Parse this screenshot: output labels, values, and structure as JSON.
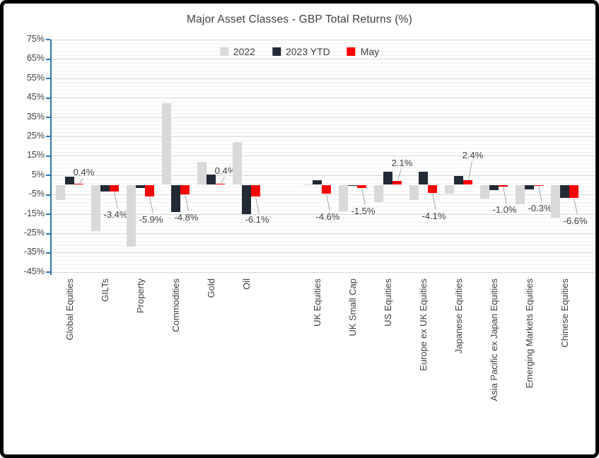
{
  "frame": {
    "background": "#FFFFFF",
    "border_color": "#000000"
  },
  "chart_data": {
    "type": "bar",
    "title": "Major Asset Classes - GBP Total Returns (%)",
    "xlabel": "",
    "ylabel": "",
    "ylim": [
      -45,
      75
    ],
    "y_major_step": 10,
    "y_minor_step": 2,
    "y_tick_labels": [
      "75%",
      "65%",
      "55%",
      "45%",
      "35%",
      "25%",
      "15%",
      "5%",
      "-5%",
      "-15%",
      "-25%",
      "-35%",
      "-45%"
    ],
    "grid": true,
    "legend_position": "top-center",
    "axis_color": "#2E75B6",
    "text_color": "#404040",
    "leader_line_color": "#A6A6A6",
    "categories": [
      "Global Equities",
      "GILTs",
      "Property",
      "Commodities",
      "Gold",
      "Oil",
      "UK Equities",
      "UK Small Cap",
      "US Equities",
      "Europe ex UK Equities",
      "Japanese Equities",
      "Asia Pacific ex Japan Equities",
      "Emerging Markets Equities",
      "Chinese Equities"
    ],
    "gap_after_category_index": 5,
    "series": [
      {
        "name": "2022",
        "color": "#D9D9D9",
        "values": [
          -8,
          -24,
          -32,
          42,
          12,
          22,
          0.3,
          -13.5,
          -9,
          -8,
          -4.4,
          -7,
          -10,
          -17
        ]
      },
      {
        "name": "2023 YTD",
        "color": "#222A35",
        "values": [
          4.2,
          -3.3,
          -1.6,
          -14,
          5.2,
          -15.3,
          2.2,
          -0.7,
          6.6,
          6.8,
          4.4,
          -2.7,
          -2.4,
          -6.8
        ]
      },
      {
        "name": "May",
        "color": "#FF0000",
        "values": [
          0.4,
          -3.4,
          -5.9,
          -4.8,
          0.4,
          -6.1,
          -4.6,
          -1.5,
          2.1,
          -4.1,
          2.4,
          -1.0,
          -0.3,
          -6.6
        ],
        "data_labels": [
          "0.4%",
          "-3.4%",
          "-5.9%",
          "-4.8%",
          "0.4%",
          "-6.1%",
          "-4.6%",
          "-1.5%",
          "2.1%",
          "-4.1%",
          "2.4%",
          "-1.0%",
          "-0.3%",
          "-6.6%"
        ]
      }
    ]
  }
}
